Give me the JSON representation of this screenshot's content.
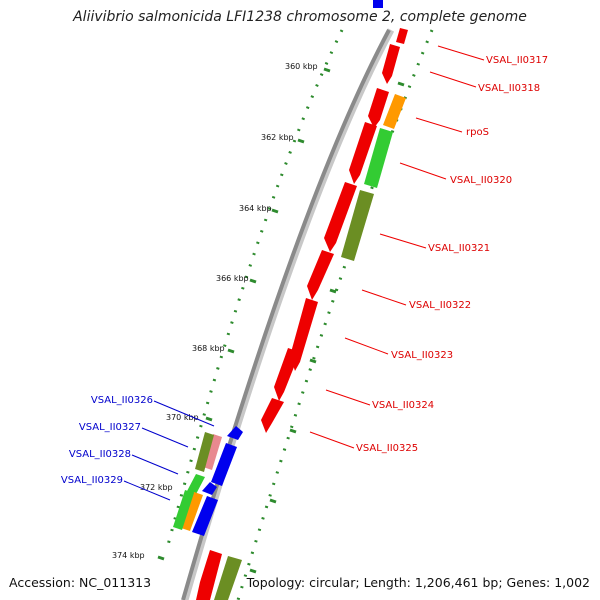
{
  "title": "Aliivibrio salmonicida LFI1238 chromosome 2, complete genome",
  "accession": "Accession: NC_011313",
  "summary": "Topology: circular; Length: 1,206,461 bp; Genes: 1,002",
  "colors": {
    "backbone": "#888888",
    "tick": "#2e8b2e",
    "label_right": "#dd0000",
    "label_left": "#0000cc",
    "red": "#ee0000",
    "olive": "#6b8e23",
    "green": "#33cc33",
    "orange": "#ff9900",
    "pink": "#e8898f",
    "blue": "#0000ee"
  },
  "ticks": [
    "360 kbp",
    "362 kbp",
    "364 kbp",
    "366 kbp",
    "368 kbp",
    "370 kbp",
    "372 kbp",
    "374 kbp"
  ],
  "genes_right": [
    "VSAL_II0317",
    "VSAL_II0318",
    "rpoS",
    "VSAL_II0320",
    "VSAL_II0321",
    "VSAL_II0322",
    "VSAL_II0323",
    "VSAL_II0324",
    "VSAL_II0325"
  ],
  "genes_left": [
    "VSAL_II0326",
    "VSAL_II0327",
    "VSAL_II0328",
    "VSAL_II0329"
  ]
}
